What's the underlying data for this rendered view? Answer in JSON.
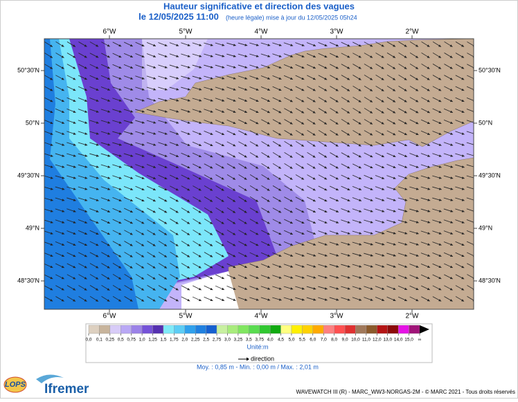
{
  "header": {
    "title": "Hauteur significative et direction des vagues",
    "date": "le 12/05/2025 11:00",
    "update": "(heure légale) mise à jour du 12/05/2025 05h24"
  },
  "map": {
    "lon_labels": [
      "6°W",
      "5°W",
      "4°W",
      "3°W",
      "2°W"
    ],
    "lat_labels": [
      "50°30'N",
      "50°N",
      "49°30'N",
      "49°N",
      "48°30'N"
    ]
  },
  "legend": {
    "labels": [
      "0,0",
      "0,1",
      "0,25",
      "0,5",
      "0,75",
      "1,0",
      "1,25",
      "1,5",
      "1,75",
      "2,0",
      "2,25",
      "2,5",
      "2,75",
      "3,0",
      "3,25",
      "3,5",
      "3,75",
      "4,0",
      "4,5",
      "5,0",
      "5,5",
      "6,0",
      "7,0",
      "8,0",
      "9,0",
      "10,0",
      "11,0",
      "12,0",
      "13,0",
      "14,0",
      "15,0",
      "∞"
    ],
    "colors": [
      "#ddd0c0",
      "#c8b49c",
      "#d8ccf8",
      "#b9a8f5",
      "#9b82e8",
      "#7552d8",
      "#5530b0",
      "#7feaf8",
      "#5ccdf5",
      "#2fa0ec",
      "#1f80e0",
      "#1560d0",
      "#c8f0a0",
      "#a8ec7c",
      "#80e660",
      "#5adc50",
      "#30c830",
      "#10aa10",
      "#ffff80",
      "#fff000",
      "#ffd200",
      "#ffaa00",
      "#ff8080",
      "#ff5050",
      "#e03030",
      "#a0785a",
      "#8b5a2b",
      "#b41414",
      "#8c0a0a",
      "#e612e6",
      "#a01478"
    ],
    "unit": "Unité:m",
    "direction": "direction"
  },
  "stats": "Moy. : 0,85 m   -   Min. : 0,00 m / Max. : 2,01 m",
  "footer": "WAVEWATCH III (R) - MARC_WW3-NORGAS-2M - © MARC 2021 - Tous droits réservés",
  "logos": {
    "lops": "LOPS",
    "ifremer": "Ifremer"
  }
}
